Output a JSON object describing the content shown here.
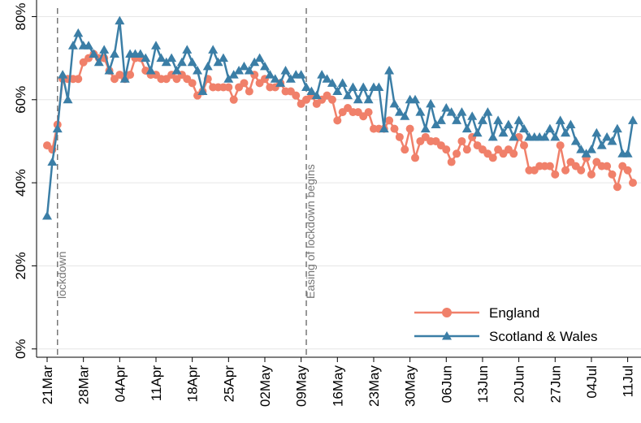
{
  "chart_data": {
    "type": "line",
    "categories": [
      "21Mar",
      null,
      null,
      null,
      null,
      null,
      null,
      "28Mar",
      null,
      null,
      null,
      null,
      null,
      null,
      "04Apr",
      null,
      null,
      null,
      null,
      null,
      null,
      "11Apr",
      null,
      null,
      null,
      null,
      null,
      null,
      "18Apr",
      null,
      null,
      null,
      null,
      null,
      null,
      "25Apr",
      null,
      null,
      null,
      null,
      null,
      null,
      "02May",
      null,
      null,
      null,
      null,
      null,
      null,
      "09May",
      null,
      null,
      null,
      null,
      null,
      null,
      "16May",
      null,
      null,
      null,
      null,
      null,
      null,
      "23May",
      null,
      null,
      null,
      null,
      null,
      null,
      "30May",
      null,
      null,
      null,
      null,
      null,
      null,
      "06Jun",
      null,
      null,
      null,
      null,
      null,
      null,
      "13Jun",
      null,
      null,
      null,
      null,
      null,
      null,
      "20Jun",
      null,
      null,
      null,
      null,
      null,
      null,
      "27Jun",
      null,
      null,
      null,
      null,
      null,
      null,
      "04Jul",
      null,
      null,
      null,
      null,
      null,
      null,
      "11Jul",
      null
    ],
    "series": [
      {
        "name": "England",
        "color": "#f0806a",
        "marker": "circle",
        "values": [
          49,
          48,
          54,
          65,
          65,
          65,
          65,
          69,
          70,
          71,
          70,
          70,
          67,
          65,
          66,
          65,
          66,
          70,
          70,
          67,
          66,
          66,
          65,
          65,
          66,
          65,
          66,
          65,
          64,
          61,
          62,
          65,
          63,
          63,
          63,
          63,
          60,
          63,
          64,
          62,
          66,
          64,
          65,
          63,
          63,
          64,
          62,
          62,
          61,
          59,
          60,
          61,
          59,
          60,
          61,
          60,
          55,
          57,
          58,
          57,
          57,
          56,
          57,
          53,
          53,
          53,
          55,
          53,
          51,
          48,
          53,
          46,
          50,
          51,
          50,
          50,
          49,
          48,
          45,
          47,
          50,
          48,
          51,
          49,
          48,
          47,
          46,
          48,
          47,
          48,
          47,
          51,
          49,
          43,
          43,
          44,
          44,
          44,
          42,
          49,
          43,
          45,
          44,
          43,
          46,
          42,
          45,
          44,
          44,
          42,
          39,
          44,
          43,
          40
        ]
      },
      {
        "name": "Scotland & Wales",
        "color": "#3b7ea6",
        "marker": "triangle",
        "values": [
          32,
          45,
          53,
          66,
          60,
          73,
          76,
          73,
          73,
          71,
          69,
          72,
          67,
          71,
          79,
          65,
          71,
          71,
          71,
          70,
          67,
          73,
          70,
          69,
          70,
          67,
          69,
          72,
          69,
          67,
          62,
          68,
          72,
          69,
          70,
          65,
          66,
          67,
          68,
          67,
          69,
          70,
          68,
          66,
          65,
          64,
          67,
          65,
          66,
          66,
          63,
          62,
          61,
          66,
          65,
          64,
          62,
          64,
          61,
          63,
          60,
          63,
          60,
          63,
          63,
          53,
          67,
          59,
          57,
          56,
          60,
          60,
          57,
          53,
          59,
          54,
          55,
          58,
          57,
          55,
          57,
          53,
          56,
          52,
          55,
          57,
          51,
          55,
          52,
          54,
          51,
          55,
          53,
          51,
          51,
          51,
          51,
          53,
          51,
          55,
          52,
          54,
          50,
          48,
          47,
          48,
          52,
          49,
          51,
          50,
          53,
          47,
          47,
          55
        ]
      }
    ],
    "ylim": [
      -2,
      84
    ],
    "yticks": [
      {
        "value": 0,
        "label": "0%"
      },
      {
        "value": 20,
        "label": "20%"
      },
      {
        "value": 40,
        "label": "40%"
      },
      {
        "value": 60,
        "label": "60%"
      },
      {
        "value": 80,
        "label": "80%"
      }
    ],
    "grid": true,
    "legend": "lower right",
    "annotations": [
      {
        "text": "lockdown",
        "category_index": 2
      },
      {
        "text": "Easing of lockdown begins",
        "category_index": 50
      }
    ]
  }
}
